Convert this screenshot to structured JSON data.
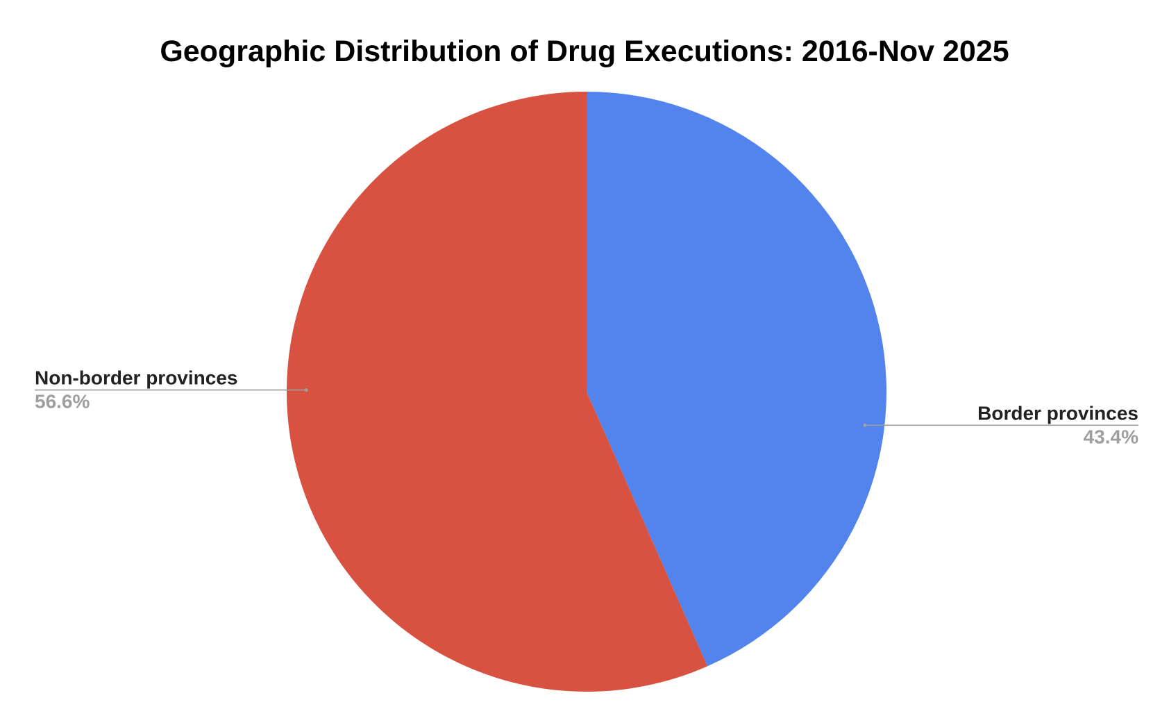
{
  "chart_data": {
    "type": "pie",
    "title": "Geographic Distribution of Drug Executions: 2016-Nov 2025",
    "start_angle": "12 o'clock",
    "direction": "clockwise",
    "slices": [
      {
        "label": "Border provinces",
        "value": 43.4,
        "value_label": "43.4%",
        "color": "#5384ed"
      },
      {
        "label": "Non-border provinces",
        "value": 56.6,
        "value_label": "56.6%",
        "color": "#d75241"
      }
    ]
  }
}
